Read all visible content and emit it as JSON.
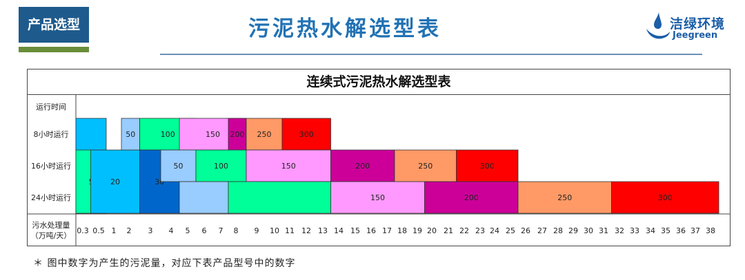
{
  "header": {
    "badge": "产品选型",
    "title": "污泥热水解选型表",
    "logo_cn": "洁绿环境",
    "logo_en": "Jeegreen",
    "badge_color": "#1e5a8c",
    "title_color": "#2172b4"
  },
  "chart_data": {
    "type": "gantt-bar",
    "title": "连续式污泥热水解选型表",
    "row_header": "运行时间",
    "x_axis_label": [
      "污水处理量",
      "（万吨/天）"
    ],
    "x_ticks": [
      "0.3",
      "0.5",
      "1",
      "2",
      "3",
      "4",
      "5",
      "6",
      "7",
      "8",
      "9",
      "10",
      "11",
      "12",
      "13",
      "14",
      "15",
      "16",
      "17",
      "18",
      "19",
      "20",
      "21",
      "22",
      "23",
      "24",
      "25",
      "26",
      "27",
      "28",
      "29",
      "30",
      "31",
      "32",
      "33",
      "34",
      "35",
      "36",
      "37",
      "38"
    ],
    "rows": [
      "8小时运行",
      "16小时运行",
      "24小时运行"
    ],
    "segments": [
      {
        "label": "",
        "color": "#00bfff",
        "rows": [
          0,
          1,
          2
        ],
        "from": "0.3",
        "to": "0.5"
      },
      {
        "label": "5",
        "color": "#00ffaa",
        "rows": [
          1,
          2
        ],
        "from": "0.3",
        "to": "0.5"
      },
      {
        "label": "20",
        "color": "#00bfff",
        "rows": [
          1,
          2
        ],
        "from": "0.5",
        "to": "2"
      },
      {
        "label": "50",
        "color": "#99ccff",
        "rows": [
          0
        ],
        "from": "2",
        "to": "2"
      },
      {
        "label": "100",
        "color": "#00ff99",
        "rows": [
          0
        ],
        "from": "3",
        "to": "5"
      },
      {
        "label": "150",
        "color": "#ff99ff",
        "rows": [
          0
        ],
        "from": "5",
        "to": "8"
      },
      {
        "label": "200",
        "color": "#cc0099",
        "rows": [
          0
        ],
        "from": "8",
        "to": "8"
      },
      {
        "label": "250",
        "color": "#ff9966",
        "rows": [
          0
        ],
        "from": "9",
        "to": "10"
      },
      {
        "label": "300",
        "color": "#ff0000",
        "rows": [
          0
        ],
        "from": "11",
        "to": "13"
      },
      {
        "label": "30",
        "color": "#0066cc",
        "rows": [
          1,
          2
        ],
        "from": "3",
        "to": "4"
      },
      {
        "label": "50",
        "color": "#99ccff",
        "rows": [
          1
        ],
        "from": "4",
        "to": "5"
      },
      {
        "label": "100",
        "color": "#00ff99",
        "rows": [
          1
        ],
        "from": "6",
        "to": "8"
      },
      {
        "label": "150",
        "color": "#ff99ff",
        "rows": [
          1
        ],
        "from": "9",
        "to": "13"
      },
      {
        "label": "200",
        "color": "#cc0099",
        "rows": [
          1
        ],
        "from": "14",
        "to": "17"
      },
      {
        "label": "250",
        "color": "#ff9966",
        "rows": [
          1
        ],
        "from": "18",
        "to": "21"
      },
      {
        "label": "300",
        "color": "#ff0000",
        "rows": [
          1
        ],
        "from": "22",
        "to": "25"
      },
      {
        "label": "",
        "color": "#99ccff",
        "rows": [
          2
        ],
        "from": "5",
        "to": "7"
      },
      {
        "label": "",
        "color": "#00ff99",
        "rows": [
          2
        ],
        "from": "8",
        "to": "13"
      },
      {
        "label": "150",
        "color": "#ff99ff",
        "rows": [
          2
        ],
        "from": "14",
        "to": "19"
      },
      {
        "label": "200",
        "color": "#cc0099",
        "rows": [
          2
        ],
        "from": "20",
        "to": "25"
      },
      {
        "label": "250",
        "color": "#ff9966",
        "rows": [
          2
        ],
        "from": "26",
        "to": "31"
      },
      {
        "label": "300",
        "color": "#ff0000",
        "rows": [
          2
        ],
        "from": "32",
        "to": "38"
      }
    ]
  },
  "footnote": "＊ 图中数字为产生的污泥量，对应下表产品型号中的数字"
}
